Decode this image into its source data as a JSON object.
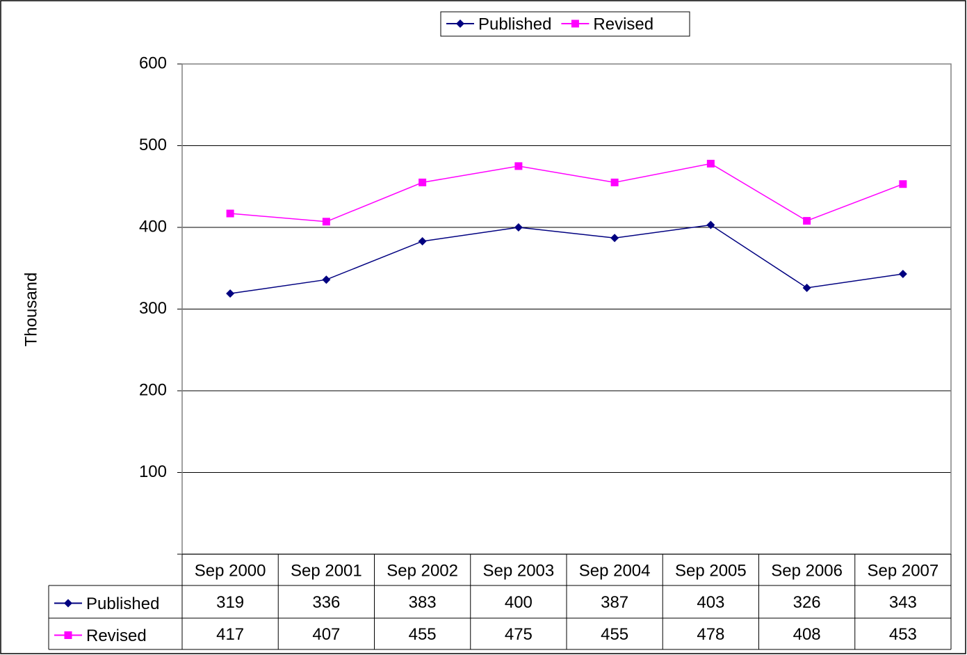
{
  "chart_data": {
    "type": "line",
    "y_label": "Thousand",
    "categories": [
      "Sep 2000",
      "Sep 2001",
      "Sep 2002",
      "Sep 2003",
      "Sep 2004",
      "Sep 2005",
      "Sep 2006",
      "Sep 2007"
    ],
    "series": [
      {
        "name": "Published",
        "color": "#000080",
        "marker": "diamond",
        "values": [
          319,
          336,
          383,
          400,
          387,
          403,
          326,
          343
        ]
      },
      {
        "name": "Revised",
        "color": "#ff00ff",
        "marker": "square",
        "values": [
          417,
          407,
          455,
          475,
          455,
          478,
          408,
          453
        ]
      }
    ],
    "ylim": [
      0,
      600
    ],
    "yticks": [
      100,
      200,
      300,
      400,
      500,
      600
    ],
    "grid": true,
    "legend": "top"
  }
}
